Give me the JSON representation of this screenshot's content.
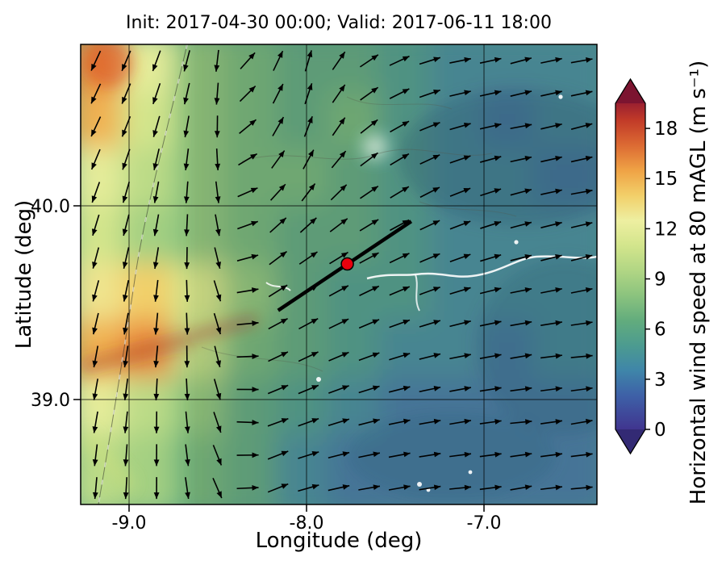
{
  "figure_title": "Init: 2017-04-30 00:00; Valid: 2017-06-11 18:00",
  "axes": {
    "xlabel": "Longitude (deg)",
    "ylabel": "Latitude (deg)",
    "x_tick_labels": [
      "-9.0",
      "-8.0",
      "-7.0"
    ],
    "x_tick_values": [
      -9.0,
      -8.0,
      -7.0
    ],
    "y_tick_labels": [
      "40.0",
      "39.0"
    ],
    "y_tick_values": [
      40.0,
      39.0
    ],
    "xlim": [
      -9.27,
      -6.36
    ],
    "ylim": [
      38.46,
      40.83
    ],
    "grid": true
  },
  "colorbar": {
    "label": "Horizontal wind speed at 80 mAGL (m s⁻¹)",
    "tick_labels": [
      "0",
      "3",
      "6",
      "9",
      "12",
      "15",
      "18"
    ],
    "tick_values": [
      0,
      3,
      6,
      9,
      12,
      15,
      18
    ],
    "value_range": [
      0,
      19.5
    ],
    "extend": "both",
    "under_color": "#332a74",
    "over_color": "#7c1430",
    "colormap_stops": [
      [
        0.0,
        "#40358f"
      ],
      [
        2.0,
        "#3e60a7"
      ],
      [
        3.5,
        "#3f85a9"
      ],
      [
        5.0,
        "#4c9b90"
      ],
      [
        6.5,
        "#62ac7d"
      ],
      [
        8.0,
        "#8bc37e"
      ],
      [
        9.5,
        "#b1d684"
      ],
      [
        11.0,
        "#d3e58c"
      ],
      [
        12.5,
        "#eeefa1"
      ],
      [
        14.0,
        "#f2cf69"
      ],
      [
        15.5,
        "#efa245"
      ],
      [
        17.0,
        "#dc6a33"
      ],
      [
        18.5,
        "#c13a28"
      ],
      [
        19.5,
        "#9b2030"
      ]
    ]
  },
  "chart_data": {
    "type": "heatmap",
    "title": "Init: 2017-04-30 00:00; Valid: 2017-06-11 18:00",
    "xlabel": "Longitude (deg)",
    "ylabel": "Latitude (deg)",
    "xlim": [
      -9.27,
      -6.36
    ],
    "ylim": [
      38.46,
      40.83
    ],
    "x_ticks": [
      -9.0,
      -8.0,
      -7.0
    ],
    "y_ticks": [
      39.0,
      40.0
    ],
    "grid": true,
    "colorbar_label": "Horizontal wind speed at 80 mAGL (m s⁻¹)",
    "colorbar_ticks": [
      0,
      3,
      6,
      9,
      12,
      15,
      18
    ],
    "value_range": [
      0,
      19.5
    ],
    "field": {
      "units": "m s⁻¹",
      "quantity": "horizontal wind speed at 80 m AGL (estimated coarse grid)",
      "lon": [
        -9.12,
        -8.83,
        -8.54,
        -8.25,
        -7.96,
        -7.67,
        -7.38,
        -7.09,
        -6.8,
        -6.51
      ],
      "lat": [
        40.68,
        40.38,
        40.09,
        39.79,
        39.49,
        39.2,
        38.9,
        38.61
      ],
      "wind_speed": [
        [
          16,
          12,
          8,
          7,
          6,
          6,
          5,
          4,
          4,
          4
        ],
        [
          15,
          11,
          8,
          7,
          6,
          7,
          5,
          4,
          3,
          4
        ],
        [
          12,
          10,
          8,
          7,
          7,
          6,
          5,
          4,
          4,
          3
        ],
        [
          11,
          9,
          8,
          7,
          6,
          6,
          5,
          4,
          4,
          4
        ],
        [
          13,
          14,
          11,
          8,
          6,
          5,
          5,
          4,
          4,
          4
        ],
        [
          15,
          16,
          10,
          7,
          6,
          5,
          4,
          4,
          3,
          4
        ],
        [
          12,
          10,
          8,
          6,
          5,
          4,
          3,
          3,
          3,
          3
        ],
        [
          10,
          9,
          7,
          6,
          4,
          3,
          3,
          3,
          3,
          3
        ]
      ]
    },
    "quiver": {
      "description": "wind direction arrows (estimated coarse grid, deg CCW from east)",
      "lon": [
        -9.12,
        -8.83,
        -8.54,
        -8.25,
        -7.96,
        -7.67,
        -7.38,
        -7.09,
        -6.8,
        -6.51
      ],
      "lat": [
        40.68,
        40.38,
        40.09,
        39.79,
        39.49,
        39.2,
        38.9,
        38.61
      ],
      "direction_deg_from_east_ccw": [
        [
          -115,
          -110,
          -100,
          60,
          75,
          35,
          20,
          10,
          15,
          10
        ],
        [
          -115,
          -105,
          -95,
          55,
          70,
          40,
          25,
          15,
          10,
          15
        ],
        [
          -110,
          -100,
          -90,
          45,
          55,
          35,
          30,
          20,
          15,
          10
        ],
        [
          -105,
          -100,
          -85,
          40,
          35,
          30,
          25,
          20,
          15,
          15
        ],
        [
          -105,
          -95,
          -80,
          30,
          30,
          25,
          20,
          15,
          10,
          10
        ],
        [
          -100,
          -95,
          -85,
          25,
          25,
          20,
          15,
          10,
          10,
          5
        ],
        [
          -100,
          -90,
          -80,
          20,
          20,
          15,
          10,
          10,
          5,
          10
        ],
        [
          -95,
          -90,
          -75,
          25,
          15,
          10,
          10,
          5,
          10,
          5
        ]
      ]
    },
    "transect_line": {
      "lon": [
        -8.16,
        -7.41
      ],
      "lat": [
        39.46,
        39.92
      ],
      "color": "#000000"
    },
    "site_marker": {
      "lon": -7.77,
      "lat": 39.7,
      "fill": "#e8000d",
      "edge": "#000000"
    }
  }
}
